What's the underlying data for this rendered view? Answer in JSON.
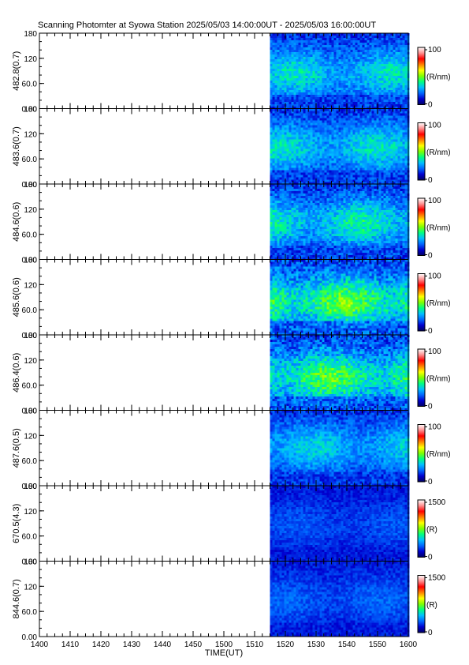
{
  "title": "Scanning Photomter at Syowa Station 2025/05/03 14:00:00UT - 2025/05/03 16:00:00UT",
  "chart_data": {
    "type": "heatmap",
    "xlabel": "TIME(UT)",
    "x_ticks": [
      "1400",
      "1410",
      "1420",
      "1430",
      "1440",
      "1450",
      "1500",
      "1510",
      "1520",
      "1530",
      "1540",
      "1550",
      "1600"
    ],
    "y_ticks": [
      "0.00",
      "60.0",
      "120",
      "180"
    ],
    "ylim": [
      0,
      180
    ],
    "data_start": "1515",
    "colorscale": [
      "#000060",
      "#0000d0",
      "#0066ff",
      "#00c0ff",
      "#00ff80",
      "#80ff00",
      "#ffff00",
      "#ff8000",
      "#ff0000",
      "#ff9090",
      "#ffffff"
    ],
    "panels": [
      {
        "ylabel": "482.8(0.7)",
        "cbar_max": "100",
        "cbar_min": "0",
        "unit": "(R/nm)",
        "intensity": 0.55,
        "band_center": 0.52
      },
      {
        "ylabel": "483.6(0.7)",
        "cbar_max": "100",
        "cbar_min": "0",
        "unit": "(R/nm)",
        "intensity": 0.55,
        "band_center": 0.5
      },
      {
        "ylabel": "484.6(0.6)",
        "cbar_max": "100",
        "cbar_min": "0",
        "unit": "(R/nm)",
        "intensity": 0.62,
        "band_center": 0.5
      },
      {
        "ylabel": "485.6(0.6)",
        "cbar_max": "100",
        "cbar_min": "0",
        "unit": "(R/nm)",
        "intensity": 0.85,
        "band_center": 0.55
      },
      {
        "ylabel": "486.4(0.6)",
        "cbar_max": "100",
        "cbar_min": "0",
        "unit": "(R/nm)",
        "intensity": 0.8,
        "band_center": 0.55
      },
      {
        "ylabel": "487.6(0.5)",
        "cbar_max": "100",
        "cbar_min": "0",
        "unit": "(R/nm)",
        "intensity": 0.5,
        "band_center": 0.48
      },
      {
        "ylabel": "670.5(4.3)",
        "cbar_max": "1500",
        "cbar_min": "0",
        "unit": "(R)",
        "intensity": 0.18,
        "band_center": 0.5
      },
      {
        "ylabel": "844.6(0.7)",
        "cbar_max": "1500",
        "cbar_min": "0",
        "unit": "(R)",
        "intensity": 0.22,
        "band_center": 0.5
      }
    ]
  }
}
